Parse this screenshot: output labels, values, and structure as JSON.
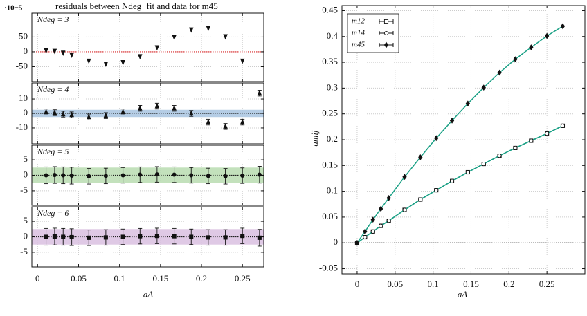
{
  "chart_data": [
    {
      "type": "scatter",
      "title": "residuals between Ndeg−fit and data for m45",
      "scale_label": "·10−5",
      "label": "Ndeg = 3",
      "x": [
        0.0104,
        0.0208,
        0.0312,
        0.0417,
        0.0625,
        0.0833,
        0.1042,
        0.125,
        0.1458,
        0.1667,
        0.1875,
        0.2083,
        0.2292,
        0.25,
        0.2708
      ],
      "values": [
        5,
        3,
        -3,
        -10,
        -30,
        -40,
        -35,
        -15,
        15,
        50,
        75,
        80,
        52,
        -30,
        null
      ],
      "marker": "tri-down",
      "fit_color": "#d62728",
      "xlim": [
        -0.007,
        0.276
      ],
      "ylim": [
        -100,
        130
      ],
      "yticks": [
        -50,
        0,
        50
      ],
      "grid": true
    },
    {
      "type": "scatter",
      "label": "Ndeg = 4",
      "values": [
        1,
        0.5,
        -0.5,
        -1,
        -2.5,
        -1.5,
        1,
        3.5,
        5,
        3.5,
        0,
        -6,
        -9,
        -6,
        14
      ],
      "errors": [
        2,
        2,
        2,
        2,
        2,
        2,
        2,
        2,
        2,
        2,
        2,
        2,
        2,
        2,
        2
      ],
      "band": [
        -2.5,
        2.5
      ],
      "band_color": "#a8c4e0",
      "marker": "tri-up",
      "fit_color": "#222",
      "ylim": [
        -21,
        21
      ],
      "yticks": [
        -10,
        0,
        10
      ],
      "grid": true
    },
    {
      "type": "scatter",
      "label": "Ndeg = 5",
      "values": [
        0,
        0.1,
        0,
        -0.1,
        -0.3,
        -0.2,
        0,
        0.2,
        0.3,
        0.2,
        0,
        -0.2,
        -0.3,
        -0.1,
        0.2
      ],
      "errors": [
        2.7,
        2.7,
        2.7,
        2.7,
        2.5,
        2.5,
        2.5,
        2.5,
        2.5,
        2.5,
        2.5,
        2.5,
        2.5,
        2.5,
        2.7
      ],
      "band": [
        -2.5,
        2.5
      ],
      "band_color": "#b9dcb0",
      "marker": "circle",
      "fit_color": "#222",
      "ylim": [
        -9.7,
        9.7
      ],
      "yticks": [
        -5,
        0,
        5
      ],
      "grid": true
    },
    {
      "type": "scatter",
      "label": "Ndeg = 6",
      "xlabel": "aΔ",
      "xticks": [
        0,
        0.05,
        0.1,
        0.15,
        0.2,
        0.25
      ],
      "values": [
        0,
        0.1,
        0,
        -0.1,
        -0.3,
        -0.2,
        0,
        0.2,
        0.3,
        0.2,
        0,
        -0.2,
        -0.2,
        0.3,
        -0.3
      ],
      "errors": [
        2.7,
        2.7,
        2.7,
        2.7,
        2.5,
        2.5,
        2.5,
        2.5,
        2.5,
        2.5,
        2.5,
        2.5,
        2.5,
        2.5,
        2.7
      ],
      "band": [
        -2.5,
        2.5
      ],
      "band_color": "#d9bfe0",
      "marker": "square",
      "fit_color": "#222",
      "ylim": [
        -9.7,
        9.7
      ],
      "yticks": [
        -5,
        0,
        5
      ],
      "grid": true
    },
    {
      "type": "line",
      "xlabel": "aΔ",
      "ylabel": "amij",
      "legend": "upper left",
      "grid": true,
      "fit_color": "#1aa085",
      "x": [
        0,
        0.0104,
        0.0208,
        0.0312,
        0.0417,
        0.0625,
        0.0833,
        0.1042,
        0.125,
        0.1458,
        0.1667,
        0.1875,
        0.2083,
        0.2292,
        0.25,
        0.2708
      ],
      "xlim": [
        -0.02,
        0.3
      ],
      "xticks": [
        0,
        0.05,
        0.1,
        0.15,
        0.2,
        0.25
      ],
      "ylim": [
        -0.06,
        0.46
      ],
      "yticks": [
        -0.05,
        0,
        0.05,
        0.1,
        0.15,
        0.2,
        0.25,
        0.3,
        0.35,
        0.4,
        0.45
      ],
      "series": [
        {
          "name": "m12",
          "marker": "square-open",
          "values": [
            0,
            0.011,
            0.022,
            0.033,
            0.043,
            0.064,
            0.084,
            0.102,
            0.12,
            0.137,
            0.153,
            0.169,
            0.184,
            0.198,
            0.212,
            0.227
          ]
        },
        {
          "name": "m14",
          "marker": "circle-open",
          "values": [
            0,
            0.011,
            0.022,
            0.033,
            0.043,
            0.064,
            0.084,
            0.102,
            0.12,
            0.137,
            0.153,
            0.169,
            0.184,
            0.198,
            0.212,
            0.227
          ]
        },
        {
          "name": "m45",
          "marker": "diamond",
          "values": [
            0,
            0.022,
            0.045,
            0.066,
            0.087,
            0.128,
            0.166,
            0.203,
            0.237,
            0.27,
            0.301,
            0.33,
            0.356,
            0.379,
            0.401,
            0.42
          ]
        }
      ]
    }
  ]
}
